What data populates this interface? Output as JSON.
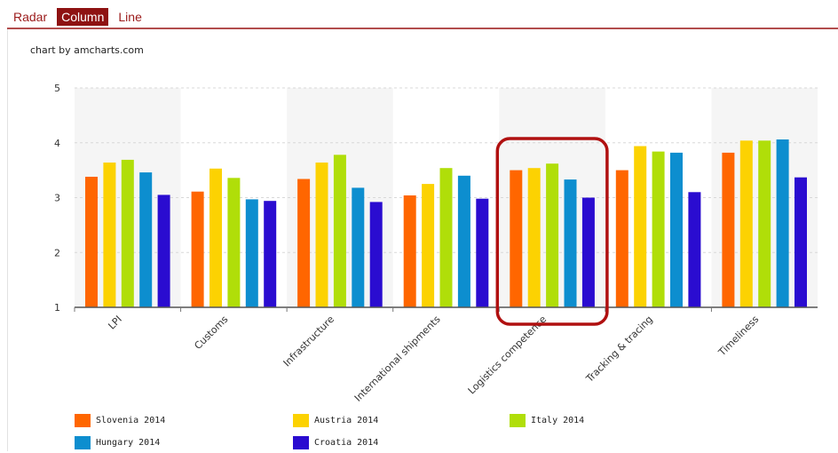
{
  "tabs": [
    {
      "label": "Radar",
      "active": false
    },
    {
      "label": "Column",
      "active": true
    },
    {
      "label": "Line",
      "active": false
    }
  ],
  "credit": "chart by amcharts.com",
  "colors": {
    "tab_active_bg": "#8e1212",
    "tab_text": "#9b1a1a",
    "highlight_box": "#b01010"
  },
  "chart_data": {
    "type": "bar",
    "categories": [
      "LPI",
      "Customs",
      "Infrastructure",
      "International shipments",
      "Logistics competence",
      "Tracking & tracing",
      "Timeliness"
    ],
    "series": [
      {
        "name": "Slovenia 2014",
        "color": "#ff6600",
        "values": [
          3.38,
          3.11,
          3.34,
          3.04,
          3.5,
          3.5,
          3.82
        ]
      },
      {
        "name": "Austria 2014",
        "color": "#fcd202",
        "values": [
          3.64,
          3.53,
          3.64,
          3.25,
          3.54,
          3.94,
          4.04
        ]
      },
      {
        "name": "Italy 2014",
        "color": "#b0de09",
        "values": [
          3.69,
          3.36,
          3.78,
          3.54,
          3.62,
          3.84,
          4.04
        ]
      },
      {
        "name": "Hungary 2014",
        "color": "#0d8ecf",
        "values": [
          3.46,
          2.97,
          3.18,
          3.4,
          3.33,
          3.82,
          4.06
        ]
      },
      {
        "name": "Croatia 2014",
        "color": "#2a0cd0",
        "values": [
          3.05,
          2.94,
          2.92,
          2.98,
          3.0,
          3.1,
          3.37
        ]
      }
    ],
    "yticks": [
      "1",
      "2",
      "3",
      "4",
      "5"
    ],
    "ylim": [
      1,
      5
    ],
    "xlabel": "",
    "ylabel": "",
    "grid": true,
    "legend_position": "bottom",
    "highlighted_category": "Logistics competence"
  }
}
